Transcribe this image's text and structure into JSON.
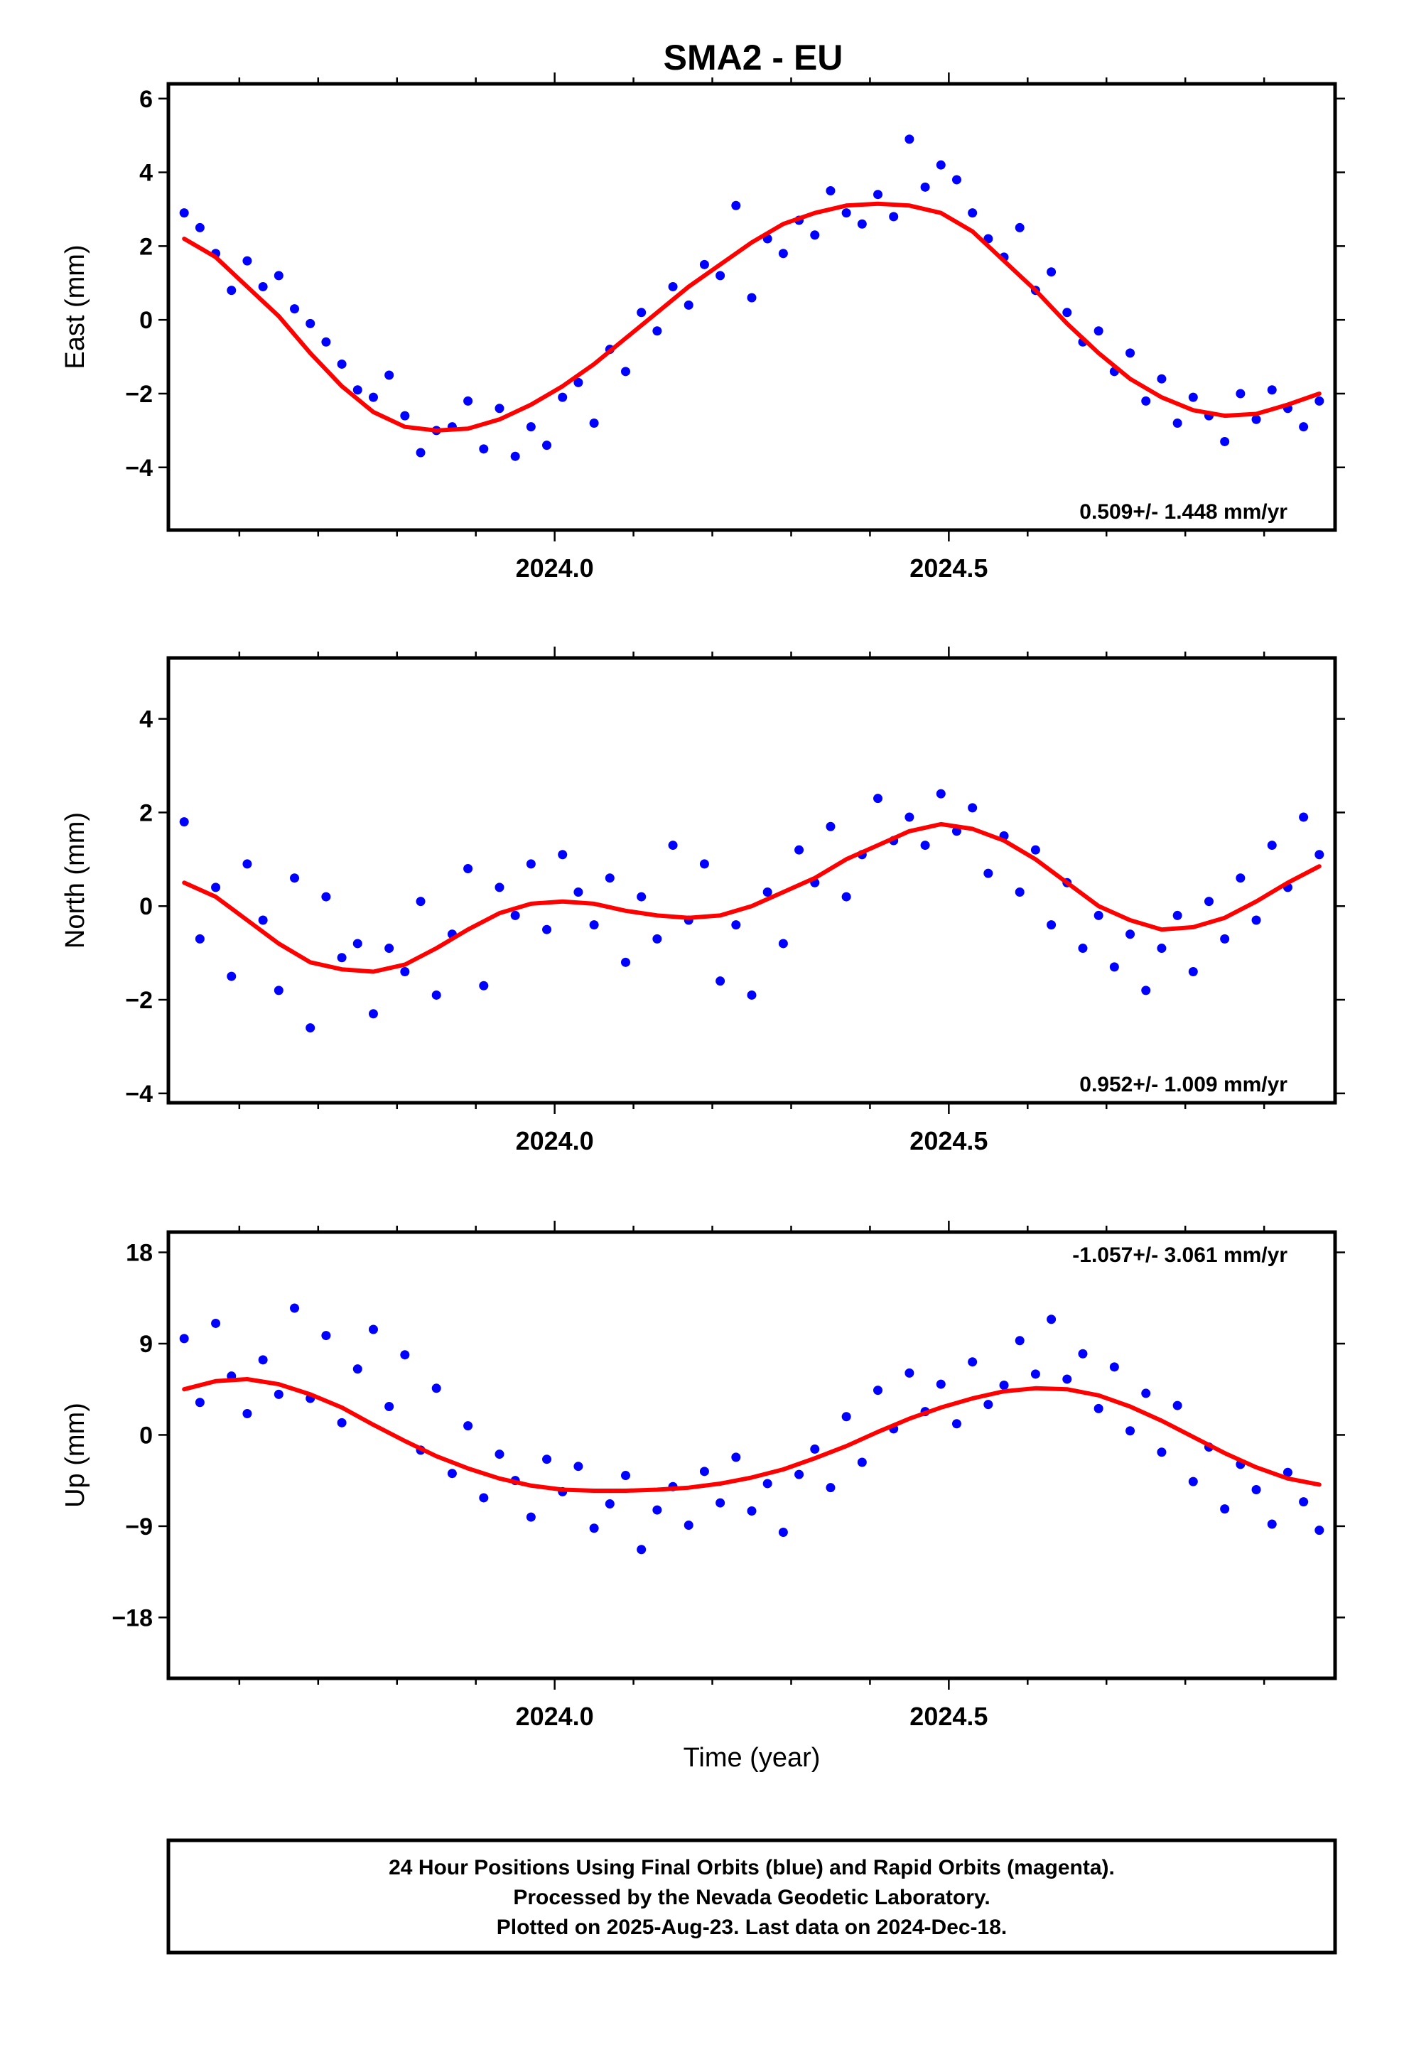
{
  "title": "SMA2 - EU",
  "xlabel": "Time (year)",
  "x_tick_labels": [
    "2024.0",
    "2024.5"
  ],
  "footer": {
    "line1": "24 Hour Positions Using Final Orbits (blue) and Rapid Orbits (magenta).",
    "line2": "Processed by the Nevada Geodetic Laboratory.",
    "line3": "Plotted on 2025-Aug-23. Last data on 2024-Dec-18."
  },
  "colors": {
    "points": "#0000ff",
    "fit": "#ff0000",
    "frame": "#000000"
  },
  "chart_data": [
    {
      "type": "scatter",
      "ylabel": "East (mm)",
      "xlim": [
        2023.51,
        2024.99
      ],
      "ylim": [
        -5.7,
        6.4
      ],
      "yticks": [
        -4,
        -2,
        0,
        2,
        4,
        6
      ],
      "ytick_labels": [
        "−4",
        "−2",
        "0",
        "2",
        "4",
        "6"
      ],
      "rate": "0.509+/- 1.448 mm/yr",
      "rate_position": "bottom-right",
      "series": [
        {
          "kind": "points",
          "x": [
            2023.53,
            2023.55,
            2023.57,
            2023.59,
            2023.61,
            2023.63,
            2023.65,
            2023.67,
            2023.69,
            2023.71,
            2023.73,
            2023.75,
            2023.77,
            2023.79,
            2023.81,
            2023.83,
            2023.85,
            2023.87,
            2023.89,
            2023.91,
            2023.93,
            2023.95,
            2023.97,
            2023.99,
            2024.01,
            2024.03,
            2024.05,
            2024.07,
            2024.09,
            2024.11,
            2024.13,
            2024.15,
            2024.17,
            2024.19,
            2024.21,
            2024.23,
            2024.25,
            2024.27,
            2024.29,
            2024.31,
            2024.33,
            2024.35,
            2024.37,
            2024.39,
            2024.41,
            2024.43,
            2024.45,
            2024.47,
            2024.49,
            2024.51,
            2024.53,
            2024.55,
            2024.57,
            2024.59,
            2024.61,
            2024.63,
            2024.65,
            2024.67,
            2024.69,
            2024.71,
            2024.73,
            2024.75,
            2024.77,
            2024.79,
            2024.81,
            2024.83,
            2024.85,
            2024.87,
            2024.89,
            2024.91,
            2024.93,
            2024.95,
            2024.97
          ],
          "y": [
            2.9,
            2.5,
            1.8,
            0.8,
            1.6,
            0.9,
            1.2,
            0.3,
            -0.1,
            -0.6,
            -1.2,
            -1.9,
            -2.1,
            -1.5,
            -2.6,
            -3.6,
            -3.0,
            -2.9,
            -2.2,
            -3.5,
            -2.4,
            -3.7,
            -2.9,
            -3.4,
            -2.1,
            -1.7,
            -2.8,
            -0.8,
            -1.4,
            0.2,
            -0.3,
            0.9,
            0.4,
            1.5,
            1.2,
            3.1,
            0.6,
            2.2,
            1.8,
            2.7,
            2.3,
            3.5,
            2.9,
            2.6,
            3.4,
            2.8,
            4.9,
            3.6,
            4.2,
            3.8,
            2.9,
            2.2,
            1.7,
            2.5,
            0.8,
            1.3,
            0.2,
            -0.6,
            -0.3,
            -1.4,
            -0.9,
            -2.2,
            -1.6,
            -2.8,
            -2.1,
            -2.6,
            -3.3,
            -2.0,
            -2.7,
            -1.9,
            -2.4,
            -2.9,
            -2.2
          ]
        },
        {
          "kind": "fit",
          "x": [
            2023.53,
            2023.57,
            2023.61,
            2023.65,
            2023.69,
            2023.73,
            2023.77,
            2023.81,
            2023.85,
            2023.89,
            2023.93,
            2023.97,
            2024.01,
            2024.05,
            2024.09,
            2024.13,
            2024.17,
            2024.21,
            2024.25,
            2024.29,
            2024.33,
            2024.37,
            2024.41,
            2024.45,
            2024.49,
            2024.53,
            2024.57,
            2024.61,
            2024.65,
            2024.69,
            2024.73,
            2024.77,
            2024.81,
            2024.85,
            2024.89,
            2024.93,
            2024.97
          ],
          "y": [
            2.2,
            1.7,
            0.9,
            0.1,
            -0.9,
            -1.8,
            -2.5,
            -2.9,
            -3.0,
            -2.95,
            -2.7,
            -2.3,
            -1.8,
            -1.2,
            -0.5,
            0.2,
            0.9,
            1.5,
            2.1,
            2.6,
            2.9,
            3.1,
            3.15,
            3.1,
            2.9,
            2.4,
            1.6,
            0.8,
            -0.1,
            -0.9,
            -1.6,
            -2.1,
            -2.45,
            -2.6,
            -2.55,
            -2.3,
            -2.0
          ]
        }
      ]
    },
    {
      "type": "scatter",
      "ylabel": "North (mm)",
      "xlim": [
        2023.51,
        2024.99
      ],
      "ylim": [
        -4.2,
        5.3
      ],
      "yticks": [
        -4,
        -2,
        0,
        2,
        4
      ],
      "ytick_labels": [
        "−4",
        "−2",
        "0",
        "2",
        "4"
      ],
      "rate": "0.952+/- 1.009 mm/yr",
      "rate_position": "bottom-right",
      "series": [
        {
          "kind": "points",
          "x": [
            2023.53,
            2023.55,
            2023.57,
            2023.59,
            2023.61,
            2023.63,
            2023.65,
            2023.67,
            2023.69,
            2023.71,
            2023.73,
            2023.75,
            2023.77,
            2023.79,
            2023.81,
            2023.83,
            2023.85,
            2023.87,
            2023.89,
            2023.91,
            2023.93,
            2023.95,
            2023.97,
            2023.99,
            2024.01,
            2024.03,
            2024.05,
            2024.07,
            2024.09,
            2024.11,
            2024.13,
            2024.15,
            2024.17,
            2024.19,
            2024.21,
            2024.23,
            2024.25,
            2024.27,
            2024.29,
            2024.31,
            2024.33,
            2024.35,
            2024.37,
            2024.39,
            2024.41,
            2024.43,
            2024.45,
            2024.47,
            2024.49,
            2024.51,
            2024.53,
            2024.55,
            2024.57,
            2024.59,
            2024.61,
            2024.63,
            2024.65,
            2024.67,
            2024.69,
            2024.71,
            2024.73,
            2024.75,
            2024.77,
            2024.79,
            2024.81,
            2024.83,
            2024.85,
            2024.87,
            2024.89,
            2024.91,
            2024.93,
            2024.95,
            2024.97
          ],
          "y": [
            1.8,
            -0.7,
            0.4,
            -1.5,
            0.9,
            -0.3,
            -1.8,
            0.6,
            -2.6,
            0.2,
            -1.1,
            -0.8,
            -2.3,
            -0.9,
            -1.4,
            0.1,
            -1.9,
            -0.6,
            0.8,
            -1.7,
            0.4,
            -0.2,
            0.9,
            -0.5,
            1.1,
            0.3,
            -0.4,
            0.6,
            -1.2,
            0.2,
            -0.7,
            1.3,
            -0.3,
            0.9,
            -1.6,
            -0.4,
            -1.9,
            0.3,
            -0.8,
            1.2,
            0.5,
            1.7,
            0.2,
            1.1,
            2.3,
            1.4,
            1.9,
            1.3,
            2.4,
            1.6,
            2.1,
            0.7,
            1.5,
            0.3,
            1.2,
            -0.4,
            0.5,
            -0.9,
            -0.2,
            -1.3,
            -0.6,
            -1.8,
            -0.9,
            -0.2,
            -1.4,
            0.1,
            -0.7,
            0.6,
            -0.3,
            1.3,
            0.4,
            1.9,
            1.1
          ]
        },
        {
          "kind": "fit",
          "x": [
            2023.53,
            2023.57,
            2023.61,
            2023.65,
            2023.69,
            2023.73,
            2023.77,
            2023.81,
            2023.85,
            2023.89,
            2023.93,
            2023.97,
            2024.01,
            2024.05,
            2024.09,
            2024.13,
            2024.17,
            2024.21,
            2024.25,
            2024.29,
            2024.33,
            2024.37,
            2024.41,
            2024.45,
            2024.49,
            2024.53,
            2024.57,
            2024.61,
            2024.65,
            2024.69,
            2024.73,
            2024.77,
            2024.81,
            2024.85,
            2024.89,
            2024.93,
            2024.97
          ],
          "y": [
            0.5,
            0.2,
            -0.3,
            -0.8,
            -1.2,
            -1.35,
            -1.4,
            -1.25,
            -0.9,
            -0.5,
            -0.15,
            0.05,
            0.1,
            0.05,
            -0.1,
            -0.2,
            -0.25,
            -0.2,
            0.0,
            0.3,
            0.6,
            1.0,
            1.3,
            1.6,
            1.75,
            1.65,
            1.4,
            1.0,
            0.5,
            0.0,
            -0.3,
            -0.5,
            -0.45,
            -0.25,
            0.1,
            0.5,
            0.85
          ]
        }
      ]
    },
    {
      "type": "scatter",
      "ylabel": "Up (mm)",
      "xlim": [
        2023.51,
        2024.99
      ],
      "ylim": [
        -24,
        20
      ],
      "yticks": [
        -18,
        -9,
        0,
        9,
        18
      ],
      "ytick_labels": [
        "−18",
        "−9",
        "0",
        "9",
        "18"
      ],
      "rate": "-1.057+/- 3.061 mm/yr",
      "rate_position": "top-right",
      "series": [
        {
          "kind": "points",
          "x": [
            2023.53,
            2023.55,
            2023.57,
            2023.59,
            2023.61,
            2023.63,
            2023.65,
            2023.67,
            2023.69,
            2023.71,
            2023.73,
            2023.75,
            2023.77,
            2023.79,
            2023.81,
            2023.83,
            2023.85,
            2023.87,
            2023.89,
            2023.91,
            2023.93,
            2023.95,
            2023.97,
            2023.99,
            2024.01,
            2024.03,
            2024.05,
            2024.07,
            2024.09,
            2024.11,
            2024.13,
            2024.15,
            2024.17,
            2024.19,
            2024.21,
            2024.23,
            2024.25,
            2024.27,
            2024.29,
            2024.31,
            2024.33,
            2024.35,
            2024.37,
            2024.39,
            2024.41,
            2024.43,
            2024.45,
            2024.47,
            2024.49,
            2024.51,
            2024.53,
            2024.55,
            2024.57,
            2024.59,
            2024.61,
            2024.63,
            2024.65,
            2024.67,
            2024.69,
            2024.71,
            2024.73,
            2024.75,
            2024.77,
            2024.79,
            2024.81,
            2024.83,
            2024.85,
            2024.87,
            2024.89,
            2024.91,
            2024.93,
            2024.95,
            2024.97
          ],
          "y": [
            9.5,
            3.2,
            11.0,
            5.8,
            2.1,
            7.4,
            4.0,
            12.5,
            3.6,
            9.8,
            1.2,
            6.5,
            10.4,
            2.8,
            7.9,
            -1.5,
            4.6,
            -3.8,
            0.9,
            -6.2,
            -1.9,
            -4.5,
            -8.1,
            -2.4,
            -5.6,
            -3.1,
            -9.2,
            -6.8,
            -4.0,
            -11.3,
            -7.4,
            -5.1,
            -8.9,
            -3.6,
            -6.7,
            -2.2,
            -7.5,
            -4.8,
            -9.6,
            -3.9,
            -1.4,
            -5.2,
            1.8,
            -2.7,
            4.4,
            0.6,
            6.1,
            2.3,
            5.0,
            1.1,
            7.2,
            3.0,
            4.9,
            9.3,
            6.0,
            11.4,
            5.5,
            8.0,
            2.6,
            6.7,
            0.4,
            4.1,
            -1.7,
            2.9,
            -4.6,
            -1.2,
            -7.3,
            -2.9,
            -5.4,
            -8.8,
            -3.7,
            -6.6,
            -9.4
          ]
        },
        {
          "kind": "fit",
          "x": [
            2023.53,
            2023.57,
            2023.61,
            2023.65,
            2023.69,
            2023.73,
            2023.77,
            2023.81,
            2023.85,
            2023.89,
            2023.93,
            2023.97,
            2024.01,
            2024.05,
            2024.09,
            2024.13,
            2024.17,
            2024.21,
            2024.25,
            2024.29,
            2024.33,
            2024.37,
            2024.41,
            2024.45,
            2024.49,
            2024.53,
            2024.57,
            2024.61,
            2024.65,
            2024.69,
            2024.73,
            2024.77,
            2024.81,
            2024.85,
            2024.89,
            2024.93,
            2024.97
          ],
          "y": [
            4.5,
            5.3,
            5.5,
            5.0,
            4.0,
            2.7,
            1.0,
            -0.6,
            -2.1,
            -3.3,
            -4.3,
            -5.0,
            -5.4,
            -5.5,
            -5.5,
            -5.4,
            -5.2,
            -4.8,
            -4.2,
            -3.4,
            -2.3,
            -1.1,
            0.3,
            1.6,
            2.7,
            3.6,
            4.3,
            4.6,
            4.5,
            3.9,
            2.8,
            1.4,
            -0.2,
            -1.8,
            -3.2,
            -4.3,
            -4.9
          ]
        }
      ]
    }
  ]
}
